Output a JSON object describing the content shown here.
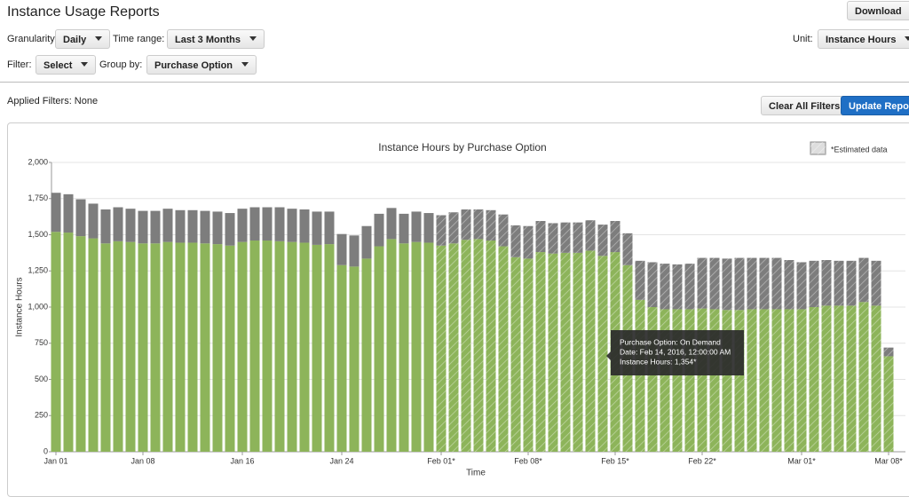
{
  "header": {
    "title": "Instance Usage Reports",
    "download": "Download"
  },
  "controls": {
    "granularity_label": "Granularity",
    "granularity": "Daily",
    "time_range_label": "Time range:",
    "time_range": "Last 3 Months",
    "unit_label": "Unit:",
    "unit": "Instance Hours",
    "filter_label": "Filter:",
    "filter": "Select",
    "group_by_label": "Group by:",
    "group_by": "Purchase Option",
    "applied_filters": "Applied Filters: None",
    "clear": "Clear All Filters",
    "update": "Update Report"
  },
  "chart_data": {
    "type": "stacked_bar",
    "title": "Instance Hours by Purchase Option",
    "xlabel": "Time",
    "ylabel": "Instance Hours",
    "legend": "*Estimated data",
    "categories": [
      "Jan 01",
      null,
      null,
      null,
      null,
      null,
      null,
      "Jan 08",
      null,
      null,
      null,
      null,
      null,
      null,
      null,
      "Jan 16",
      null,
      null,
      null,
      null,
      null,
      null,
      null,
      "Jan 24",
      null,
      null,
      null,
      null,
      null,
      null,
      null,
      "Feb 01*",
      null,
      null,
      null,
      null,
      null,
      null,
      "Feb 08*",
      null,
      null,
      null,
      null,
      null,
      null,
      "Feb 15*",
      null,
      null,
      null,
      null,
      null,
      null,
      "Feb 22*",
      null,
      null,
      null,
      null,
      null,
      null,
      null,
      "Mar 01*",
      null,
      null,
      null,
      null,
      null,
      null,
      "Mar 08*"
    ],
    "estimated": [
      false,
      false,
      false,
      false,
      false,
      false,
      false,
      false,
      false,
      false,
      false,
      false,
      false,
      false,
      false,
      false,
      false,
      false,
      false,
      false,
      false,
      false,
      false,
      false,
      false,
      false,
      false,
      false,
      false,
      false,
      false,
      true,
      true,
      true,
      true,
      true,
      true,
      true,
      true,
      true,
      true,
      true,
      true,
      true,
      true,
      true,
      true,
      true,
      true,
      true,
      true,
      true,
      true,
      true,
      true,
      true,
      true,
      true,
      true,
      true,
      true,
      true,
      true,
      true,
      true,
      true,
      true,
      true
    ],
    "series": [
      {
        "color": "#8db45a",
        "values": [
          1520,
          1515,
          1490,
          1475,
          1440,
          1455,
          1450,
          1440,
          1440,
          1450,
          1445,
          1445,
          1440,
          1435,
          1425,
          1450,
          1460,
          1460,
          1455,
          1450,
          1445,
          1430,
          1435,
          1290,
          1280,
          1335,
          1420,
          1470,
          1440,
          1450,
          1445,
          1425,
          1440,
          1465,
          1470,
          1460,
          1420,
          1345,
          1335,
          1380,
          1370,
          1375,
          1375,
          1390,
          1354,
          1380,
          1290,
          1050,
          1000,
          985,
          985,
          985,
          990,
          985,
          980,
          980,
          985,
          985,
          985,
          985,
          985,
          1000,
          1010,
          1010,
          1010,
          1035,
          1010,
          660
        ]
      },
      {
        "color": "#7d7d7d",
        "values": [
          270,
          265,
          255,
          240,
          235,
          235,
          230,
          225,
          225,
          230,
          225,
          225,
          225,
          225,
          225,
          230,
          230,
          230,
          235,
          230,
          230,
          230,
          225,
          215,
          215,
          225,
          225,
          215,
          205,
          210,
          205,
          210,
          215,
          210,
          205,
          210,
          220,
          220,
          225,
          215,
          210,
          210,
          210,
          210,
          216,
          215,
          220,
          270,
          310,
          315,
          310,
          315,
          350,
          355,
          355,
          360,
          355,
          355,
          355,
          340,
          325,
          320,
          315,
          310,
          310,
          305,
          310,
          60
        ]
      }
    ],
    "ylim": [
      0,
      2000
    ],
    "yticks": [
      0,
      250,
      500,
      750,
      {
        "value": 1000,
        "label": "1,000"
      },
      {
        "value": 1250,
        "label": "1,250"
      },
      {
        "value": 1500,
        "label": "1,500"
      },
      {
        "value": 1750,
        "label": "1,750"
      },
      {
        "value": 2000,
        "label": "2,000"
      }
    ],
    "grid": true,
    "tooltip": {
      "index": 44,
      "lines": [
        "Purchase Option: On Demand",
        "Date: Feb 14, 2016, 12:00:00 AM",
        "Instance Hours: 1,354*"
      ]
    }
  }
}
